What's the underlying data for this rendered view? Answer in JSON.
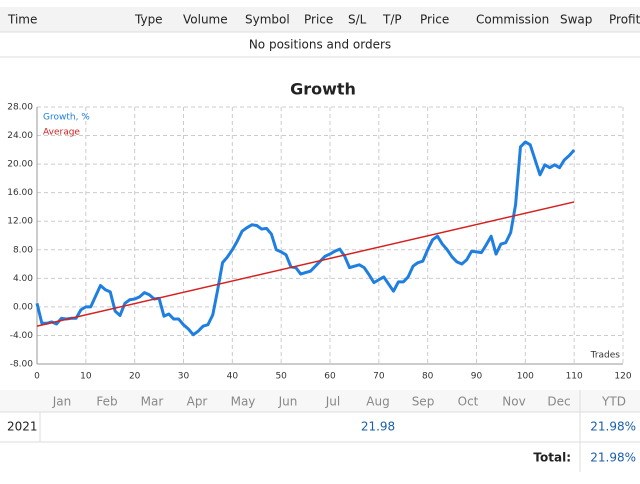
{
  "header": {
    "columns": [
      "Time",
      "Type",
      "Volume",
      "Symbol",
      "Price",
      "S/L",
      "T/P",
      "Price",
      "Commission",
      "Swap",
      "Profit"
    ]
  },
  "table": {
    "empty_message": "No positions and orders"
  },
  "chart_data": {
    "type": "line",
    "title": "Growth",
    "x_label": "Trades",
    "xlim": [
      0,
      120
    ],
    "xticks": [
      0,
      10,
      20,
      30,
      40,
      50,
      60,
      70,
      80,
      90,
      100,
      110,
      120
    ],
    "ylim": [
      -8,
      28
    ],
    "yticks": [
      {
        "value": -8,
        "label": "-8.00"
      },
      {
        "value": -4,
        "label": "-4.00"
      },
      {
        "value": 0,
        "label": "0.00"
      },
      {
        "value": 4,
        "label": "4.00"
      },
      {
        "value": 8,
        "label": "8.00"
      },
      {
        "value": 12,
        "label": "12.00"
      },
      {
        "value": 16,
        "label": "16.00"
      },
      {
        "value": 20,
        "label": "20.00"
      },
      {
        "value": 24,
        "label": "24.00"
      },
      {
        "value": 28,
        "label": "28.00"
      }
    ],
    "grid": true,
    "legend": "upper left",
    "series": [
      {
        "name": "Growth, %",
        "color": "#1f7fe0",
        "x": [
          0,
          1,
          2,
          3,
          4,
          5,
          6,
          7,
          8,
          9,
          10,
          11,
          12,
          13,
          14,
          15,
          16,
          17,
          18,
          19,
          20,
          21,
          22,
          23,
          24,
          25,
          26,
          27,
          28,
          29,
          30,
          31,
          32,
          33,
          34,
          35,
          36,
          37,
          38,
          39,
          40,
          41,
          42,
          43,
          44,
          45,
          46,
          47,
          48,
          49,
          50,
          51,
          52,
          53,
          54,
          55,
          56,
          57,
          58,
          59,
          60,
          61,
          62,
          63,
          64,
          65,
          66,
          67,
          68,
          69,
          70,
          71,
          72,
          73,
          74,
          75,
          76,
          77,
          78,
          79,
          80,
          81,
          82,
          83,
          84,
          85,
          86,
          87,
          88,
          89,
          90,
          91,
          92,
          93,
          94,
          95,
          96,
          97,
          98,
          99,
          100,
          101,
          102,
          103,
          104,
          105,
          106,
          107,
          108,
          109,
          110
        ],
        "values": [
          0.5,
          -2.3,
          -2.3,
          -2.1,
          -2.4,
          -1.6,
          -1.7,
          -1.6,
          -1.6,
          -0.4,
          0,
          0,
          1.5,
          3.0,
          2.4,
          2.1,
          -0.6,
          -1.2,
          0.5,
          1.0,
          1.1,
          1.4,
          2.0,
          1.7,
          1.1,
          1.2,
          -1.3,
          -1.0,
          -1.7,
          -1.7,
          -2.5,
          -3.1,
          -3.9,
          -3.4,
          -2.7,
          -2.5,
          -1.1,
          2.4,
          6.2,
          7.0,
          8.0,
          9.2,
          10.6,
          11.1,
          11.5,
          11.4,
          10.9,
          11.0,
          10.2,
          8.0,
          7.7,
          7.3,
          5.6,
          5.5,
          4.6,
          4.8,
          5.0,
          5.7,
          6.4,
          7.1,
          7.4,
          7.8,
          8.1,
          7.1,
          5.5,
          5.7,
          5.9,
          5.5,
          4.5,
          3.4,
          3.8,
          4.2,
          3.2,
          2.2,
          3.5,
          3.5,
          4.2,
          5.7,
          6.2,
          6.4,
          8.0,
          9.4,
          9.9,
          8.8,
          8.0,
          7.0,
          6.3,
          6.0,
          6.6,
          7.8,
          7.7,
          7.6,
          8.7,
          9.9,
          7.4,
          8.8,
          9.0,
          10.4,
          14.3,
          22.4,
          23.1,
          22.7,
          20.6,
          18.5,
          19.9,
          19.5,
          19.9,
          19.5,
          20.6,
          21.2,
          21.98
        ]
      },
      {
        "name": "Average",
        "color": "#d42020",
        "x": [
          0,
          110
        ],
        "values": [
          -2.7,
          14.7
        ]
      }
    ]
  },
  "months": {
    "columns": [
      "Jan",
      "Feb",
      "Mar",
      "Apr",
      "May",
      "Jun",
      "Jul",
      "Aug",
      "Sep",
      "Oct",
      "Nov",
      "Dec",
      "YTD"
    ],
    "rows": [
      {
        "year": "2021",
        "value": "21.98",
        "ytd": "21.98%"
      }
    ]
  },
  "total": {
    "label": "Total:",
    "value": "21.98%"
  }
}
